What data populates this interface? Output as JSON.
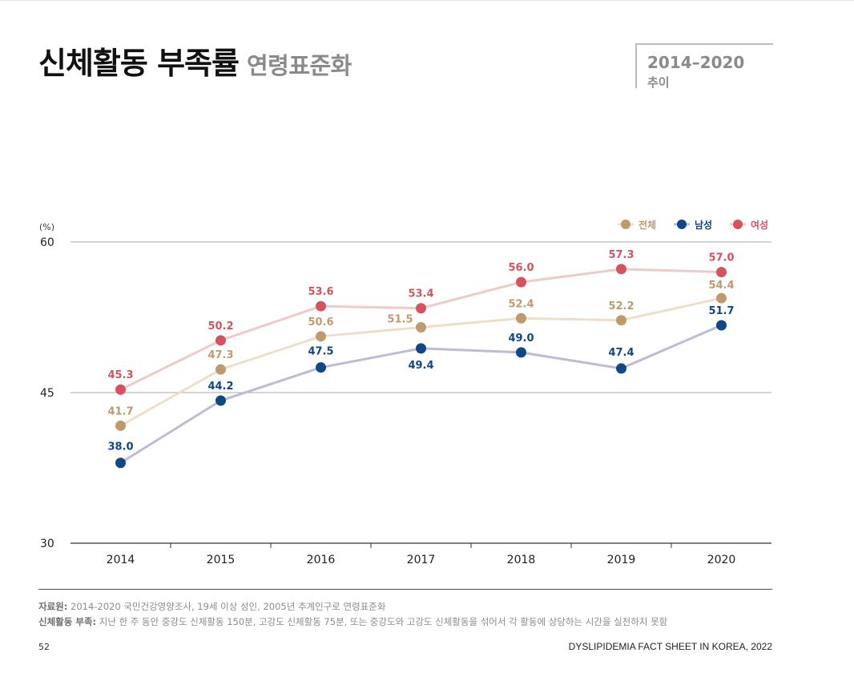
{
  "header": {
    "title": "신체활동 부족률",
    "subtitle": "연령표준화",
    "period_range": "2014–2020",
    "period_label": "추이"
  },
  "chart_data": {
    "type": "line",
    "title": "",
    "xlabel": "",
    "ylabel": "(%)",
    "ylim": [
      30,
      60
    ],
    "yticks": [
      "30",
      "45",
      "60"
    ],
    "categories": [
      "2014",
      "2015",
      "2016",
      "2017",
      "2018",
      "2019",
      "2020"
    ],
    "legend_position": "top-right",
    "series": [
      {
        "name": "여성",
        "color": "#d5535e",
        "line_color": "#eecbc9",
        "values": [
          45.3,
          50.2,
          53.6,
          53.4,
          56.0,
          57.3,
          57.0
        ],
        "labels": [
          "45.3",
          "50.2",
          "53.6",
          "53.4",
          "56.0",
          "57.3",
          "57.0"
        ]
      },
      {
        "name": "전체",
        "color": "#bf9a6e",
        "line_color": "#eedfc9",
        "values": [
          41.7,
          47.3,
          50.6,
          51.5,
          52.4,
          52.2,
          54.4
        ],
        "labels": [
          "41.7",
          "47.3",
          "50.6",
          "51.5",
          "52.4",
          "52.2",
          "54.4"
        ]
      },
      {
        "name": "남성",
        "color": "#0f4787",
        "line_color": "#bcbdd5",
        "values": [
          38.0,
          44.2,
          47.5,
          49.4,
          49.0,
          47.4,
          51.7
        ],
        "labels": [
          "38.0",
          "44.2",
          "47.5",
          "49.4",
          "49.0",
          "47.4",
          "51.7"
        ]
      }
    ]
  },
  "notes": {
    "source_label": "자료원:",
    "source_text": " 2014-2020 국민건강영양조사, 19세 이상 성인, 2005년 추계인구로 연령표준화",
    "definition_label": "신체활동 부족:",
    "definition_text": " 지난 한 주 동안 중강도 신체활동 150분, 고강도 신체활동 75분, 또는 중강도와 고강도 신체활동을 섞어서 각 활동에 상당하는 시간을 실천하지 못함"
  },
  "footer": {
    "page_number": "52",
    "doc_title": "DYSLIPIDEMIA FACT SHEET IN KOREA, 2022"
  }
}
